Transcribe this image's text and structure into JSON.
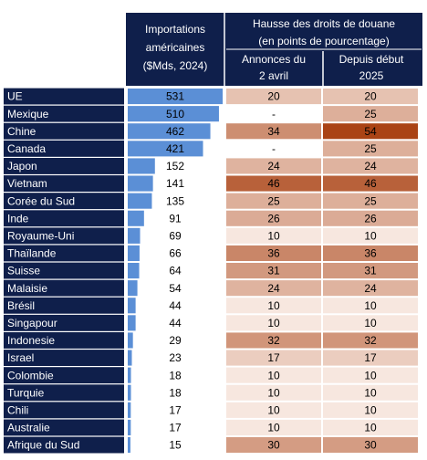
{
  "header": {
    "imports_lines": [
      "Importations",
      "américaines",
      "($Mds, 2024)"
    ],
    "tariff_lines": [
      "Hausse des droits de douane",
      "(en points de pourcentage)"
    ],
    "april_lines": [
      "Annonces du",
      "2 avril"
    ],
    "since_lines": [
      "Depuis début",
      "2025"
    ]
  },
  "rows": [
    {
      "country": "UE",
      "imports": 531,
      "april": 20,
      "since": 20
    },
    {
      "country": "Mexique",
      "imports": 510,
      "april": "-",
      "since": 25
    },
    {
      "country": "Chine",
      "imports": 462,
      "april": 34,
      "since": 54
    },
    {
      "country": "Canada",
      "imports": 421,
      "april": "-",
      "since": 25
    },
    {
      "country": "Japon",
      "imports": 152,
      "april": 24,
      "since": 24
    },
    {
      "country": "Vietnam",
      "imports": 141,
      "april": 46,
      "since": 46
    },
    {
      "country": "Corée du Sud",
      "imports": 135,
      "april": 25,
      "since": 25
    },
    {
      "country": "Inde",
      "imports": 91,
      "april": 26,
      "since": 26
    },
    {
      "country": "Royaume-Uni",
      "imports": 69,
      "april": 10,
      "since": 10
    },
    {
      "country": "Thaïlande",
      "imports": 66,
      "april": 36,
      "since": 36
    },
    {
      "country": "Suisse",
      "imports": 64,
      "april": 31,
      "since": 31
    },
    {
      "country": "Malaisie",
      "imports": 54,
      "april": 24,
      "since": 24
    },
    {
      "country": "Brésil",
      "imports": 44,
      "april": 10,
      "since": 10
    },
    {
      "country": "Singapour",
      "imports": 44,
      "april": 10,
      "since": 10
    },
    {
      "country": "Indonesie",
      "imports": 29,
      "april": 32,
      "since": 32
    },
    {
      "country": "Israel",
      "imports": 23,
      "april": 17,
      "since": 17
    },
    {
      "country": "Colombie",
      "imports": 18,
      "april": 10,
      "since": 10
    },
    {
      "country": "Turquie",
      "imports": 18,
      "april": 10,
      "since": 10
    },
    {
      "country": "Chili",
      "imports": 17,
      "april": 10,
      "since": 10
    },
    {
      "country": "Australie",
      "imports": 17,
      "april": 10,
      "since": 10
    },
    {
      "country": "Afrique du Sud",
      "imports": 15,
      "april": 30,
      "since": 30
    }
  ]
}
